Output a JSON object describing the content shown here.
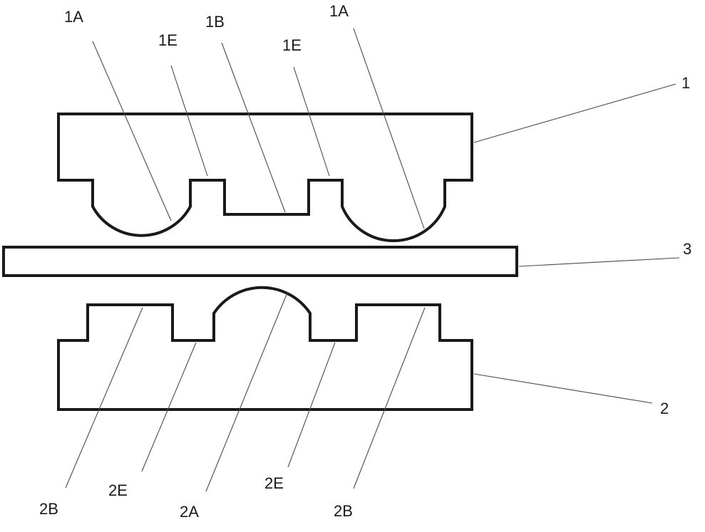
{
  "diagram": {
    "part_labels": {
      "upper_die": "1",
      "lower_die": "2",
      "sheet": "3"
    },
    "feature_labels": {
      "upper_left_arc": "1A",
      "upper_left_step": "1E",
      "upper_center_recess": "1B",
      "upper_right_step": "1E",
      "upper_right_arc": "1A",
      "lower_left_boss": "2B",
      "lower_left_step": "2E",
      "lower_center_arc": "2A",
      "lower_right_step": "2E",
      "lower_right_boss": "2B"
    },
    "colors": {
      "outline": "#1a1a1a",
      "leader": "#4a4a4a",
      "background": "#ffffff"
    }
  }
}
